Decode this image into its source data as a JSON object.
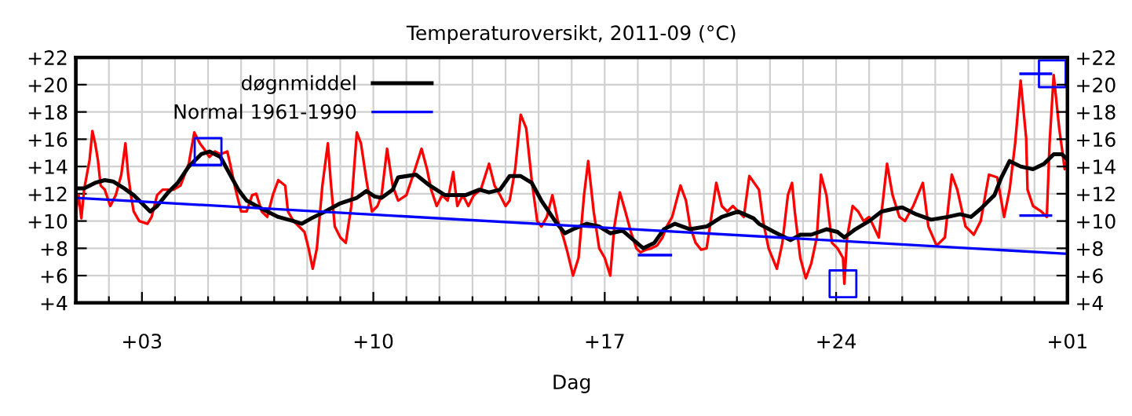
{
  "chart_data": {
    "type": "line",
    "title": "Temperaturoversikt, 2011-09 (°C)",
    "xlabel": "Dag",
    "xlim": [
      "2011-09-01",
      "2011-10-01"
    ],
    "ylim": [
      4,
      22
    ],
    "y2lim": [
      4,
      22
    ],
    "xticks": [
      {
        "value": "2011-09-01",
        "label": null
      },
      {
        "value": "2011-09-02",
        "label": null
      },
      {
        "value": "2011-09-03",
        "label": "+03"
      },
      {
        "value": "2011-09-04",
        "label": null
      },
      {
        "value": "2011-09-05",
        "label": null
      },
      {
        "value": "2011-09-06",
        "label": null
      },
      {
        "value": "2011-09-07",
        "label": null
      },
      {
        "value": "2011-09-08",
        "label": null
      },
      {
        "value": "2011-09-09",
        "label": null
      },
      {
        "value": "2011-09-10",
        "label": "+10"
      },
      {
        "value": "2011-09-11",
        "label": null
      },
      {
        "value": "2011-09-12",
        "label": null
      },
      {
        "value": "2011-09-13",
        "label": null
      },
      {
        "value": "2011-09-14",
        "label": null
      },
      {
        "value": "2011-09-15",
        "label": null
      },
      {
        "value": "2011-09-16",
        "label": null
      },
      {
        "value": "2011-09-17",
        "label": "+17"
      },
      {
        "value": "2011-09-18",
        "label": null
      },
      {
        "value": "2011-09-19",
        "label": null
      },
      {
        "value": "2011-09-20",
        "label": null
      },
      {
        "value": "2011-09-21",
        "label": null
      },
      {
        "value": "2011-09-22",
        "label": null
      },
      {
        "value": "2011-09-23",
        "label": null
      },
      {
        "value": "2011-09-24",
        "label": "+24"
      },
      {
        "value": "2011-09-25",
        "label": null
      },
      {
        "value": "2011-09-26",
        "label": null
      },
      {
        "value": "2011-09-27",
        "label": null
      },
      {
        "value": "2011-09-28",
        "label": null
      },
      {
        "value": "2011-09-29",
        "label": null
      },
      {
        "value": "2011-09-30",
        "label": null
      },
      {
        "value": "2011-10-01",
        "label": "+01"
      }
    ],
    "yticks": [
      {
        "value": 4,
        "label": "+4"
      },
      {
        "value": 6,
        "label": "+6"
      },
      {
        "value": 8,
        "label": "+8"
      },
      {
        "value": 10,
        "label": "+10"
      },
      {
        "value": 12,
        "label": "+12"
      },
      {
        "value": 14,
        "label": "+14"
      },
      {
        "value": 16,
        "label": "+16"
      },
      {
        "value": 18,
        "label": "+18"
      },
      {
        "value": 20,
        "label": "+20"
      },
      {
        "value": 22,
        "label": "+22"
      }
    ],
    "y2ticks": [
      {
        "value": 4,
        "label": "+4"
      },
      {
        "value": 6,
        "label": "+6"
      },
      {
        "value": 8,
        "label": "+8"
      },
      {
        "value": 10,
        "label": "+10"
      },
      {
        "value": 12,
        "label": "+12"
      },
      {
        "value": 14,
        "label": "+14"
      },
      {
        "value": 16,
        "label": "+16"
      },
      {
        "value": 18,
        "label": "+18"
      },
      {
        "value": 20,
        "label": "+20"
      },
      {
        "value": 22,
        "label": "+22"
      }
    ],
    "grid": true,
    "legend": "top left",
    "marker": "none",
    "line_style": "solid",
    "series": [
      {
        "color": "#ff0000",
        "x": [
          "2011-09-01T00:00",
          "2011-09-01T02:00",
          "2011-09-01T04:00",
          "2011-09-01T06:00",
          "2011-09-01T10:00",
          "2011-09-01T12:00",
          "2011-09-01T14:00",
          "2011-09-01T16:00",
          "2011-09-01T18:00",
          "2011-09-01T21:00",
          "2011-09-02T01:00",
          "2011-09-02T05:00",
          "2011-09-02T09:00",
          "2011-09-02T12:00",
          "2011-09-02T14:00",
          "2011-09-02T16:00",
          "2011-09-02T18:00",
          "2011-09-02T22:00",
          "2011-09-03T04:00",
          "2011-09-03T07:00",
          "2011-09-03T11:00",
          "2011-09-03T15:00",
          "2011-09-03T23:00",
          "2011-09-04T04:00",
          "2011-09-04T10:00",
          "2011-09-04T14:00",
          "2011-09-04T18:00",
          "2011-09-04T21:00",
          "2011-09-05T01:00",
          "2011-09-05T05:00",
          "2011-09-05T09:00",
          "2011-09-05T14:00",
          "2011-09-05T16:00",
          "2011-09-05T20:00",
          "2011-09-06T00:00",
          "2011-09-06T04:00",
          "2011-09-06T08:00",
          "2011-09-06T11:00",
          "2011-09-06T15:00",
          "2011-09-06T19:00",
          "2011-09-06T23:00",
          "2011-09-07T03:00",
          "2011-09-07T08:00",
          "2011-09-07T10:00",
          "2011-09-07T14:00",
          "2011-09-07T18:00",
          "2011-09-07T22:00",
          "2011-09-08T01:00",
          "2011-09-08T04:00",
          "2011-09-08T07:00",
          "2011-09-08T11:00",
          "2011-09-08T15:00",
          "2011-09-08T17:00",
          "2011-09-08T20:00",
          "2011-09-09T00:00",
          "2011-09-09T04:00",
          "2011-09-09T08:00",
          "2011-09-09T12:00",
          "2011-09-09T15:00",
          "2011-09-09T19:00",
          "2011-09-09T23:00",
          "2011-09-10T03:00",
          "2011-09-10T06:00",
          "2011-09-10T10:00",
          "2011-09-10T14:00",
          "2011-09-10T18:00",
          "2011-09-11T00:00",
          "2011-09-11T05:00",
          "2011-09-11T11:00",
          "2011-09-11T15:00",
          "2011-09-11T18:00",
          "2011-09-11T22:00",
          "2011-09-12T02:00",
          "2011-09-12T06:00",
          "2011-09-12T10:00",
          "2011-09-12T13:00",
          "2011-09-12T17:00",
          "2011-09-12T21:00",
          "2011-09-13T01:00",
          "2011-09-13T06:00",
          "2011-09-13T12:00",
          "2011-09-13T16:00",
          "2011-09-13T20:00",
          "2011-09-14T00:00",
          "2011-09-14T03:00",
          "2011-09-14T07:00",
          "2011-09-14T11:00",
          "2011-09-14T15:00",
          "2011-09-14T19:00",
          "2011-09-14T23:00",
          "2011-09-15T02:00",
          "2011-09-15T06:00",
          "2011-09-15T10:00",
          "2011-09-15T14:00",
          "2011-09-15T18:00",
          "2011-09-15T21:00",
          "2011-09-16T01:00",
          "2011-09-16T05:00",
          "2011-09-16T09:00",
          "2011-09-16T12:00",
          "2011-09-16T16:00",
          "2011-09-16T20:00",
          "2011-09-17T00:00",
          "2011-09-17T04:00",
          "2011-09-17T07:00",
          "2011-09-17T11:00",
          "2011-09-17T15:00",
          "2011-09-17T19:00",
          "2011-09-17T23:00",
          "2011-09-18T02:00",
          "2011-09-18T06:00",
          "2011-09-18T10:00",
          "2011-09-18T14:00",
          "2011-09-18T18:00",
          "2011-09-18T21:00",
          "2011-09-19T01:00",
          "2011-09-19T07:00",
          "2011-09-19T11:00",
          "2011-09-19T14:00",
          "2011-09-19T18:00",
          "2011-09-19T22:00",
          "2011-09-20T02:00",
          "2011-09-20T06:00",
          "2011-09-20T09:00",
          "2011-09-20T13:00",
          "2011-09-20T17:00",
          "2011-09-20T21:00",
          "2011-09-21T01:00",
          "2011-09-21T05:00",
          "2011-09-21T09:00",
          "2011-09-21T16:00",
          "2011-09-21T19:00",
          "2011-09-21T23:00",
          "2011-09-22T05:00",
          "2011-09-22T09:00",
          "2011-09-22T13:00",
          "2011-09-22T16:00",
          "2011-09-22T18:00",
          "2011-09-22T22:00",
          "2011-09-23T02:00",
          "2011-09-23T06:00",
          "2011-09-23T10:00",
          "2011-09-23T13:00",
          "2011-09-23T17:00",
          "2011-09-23T21:00",
          "2011-09-24T01:00",
          "2011-09-24T05:00",
          "2011-09-24T06:00",
          "2011-09-24T08:00",
          "2011-09-24T12:00",
          "2011-09-24T16:00",
          "2011-09-24T20:00",
          "2011-09-25T00:00",
          "2011-09-25T07:00",
          "2011-09-25T13:00",
          "2011-09-25T17:00",
          "2011-09-25T22:00",
          "2011-09-26T02:00",
          "2011-09-26T08:00",
          "2011-09-26T15:00",
          "2011-09-26T19:00",
          "2011-09-27T01:00",
          "2011-09-27T07:00",
          "2011-09-27T12:00",
          "2011-09-27T16:00",
          "2011-09-27T22:00",
          "2011-09-28T04:00",
          "2011-09-28T09:00",
          "2011-09-28T15:00",
          "2011-09-28T21:00",
          "2011-09-29T02:00",
          "2011-09-29T06:00",
          "2011-09-29T10:00",
          "2011-09-29T14:00",
          "2011-09-29T18:00",
          "2011-09-29T19:00",
          "2011-09-29T23:00",
          "2011-09-30T05:00",
          "2011-09-30T09:00",
          "2011-09-30T11:00",
          "2011-09-30T14:00",
          "2011-09-30T18:00",
          "2011-09-30T22:00",
          "2011-10-01T00:00"
        ],
        "values": [
          10.7,
          11.9,
          10.2,
          12.3,
          14.5,
          16.6,
          15.7,
          14.5,
          12.6,
          12.3,
          11.1,
          11.9,
          13.4,
          15.7,
          13.4,
          11.9,
          10.7,
          10.0,
          9.8,
          10.3,
          11.9,
          12.3,
          12.3,
          12.6,
          14.2,
          16.5,
          15.7,
          15.3,
          14.7,
          15.1,
          14.9,
          15.1,
          14.2,
          12.3,
          10.7,
          10.7,
          11.9,
          12.0,
          10.7,
          10.3,
          11.9,
          13.0,
          12.6,
          10.7,
          10.0,
          9.6,
          9.2,
          8.0,
          6.5,
          8.0,
          12.6,
          15.7,
          13.0,
          9.6,
          8.8,
          8.4,
          11.1,
          16.5,
          15.7,
          13.0,
          10.7,
          11.1,
          11.9,
          15.3,
          12.6,
          11.5,
          11.9,
          13.4,
          15.3,
          13.8,
          12.3,
          11.1,
          11.9,
          11.5,
          13.6,
          11.1,
          11.9,
          11.1,
          11.9,
          12.3,
          14.2,
          12.6,
          11.9,
          11.1,
          11.5,
          13.8,
          17.8,
          16.8,
          13.0,
          10.0,
          9.6,
          10.3,
          11.9,
          10.0,
          8.8,
          7.7,
          6.0,
          7.3,
          11.9,
          14.4,
          10.7,
          8.0,
          7.3,
          6.0,
          9.6,
          12.1,
          10.7,
          9.2,
          8.0,
          7.7,
          7.9,
          8.0,
          8.2,
          8.8,
          9.6,
          10.3,
          12.6,
          11.5,
          9.6,
          8.4,
          7.9,
          8.0,
          10.7,
          12.8,
          11.1,
          10.7,
          11.1,
          10.7,
          10.3,
          13.3,
          12.3,
          10.0,
          8.0,
          6.5,
          8.4,
          11.9,
          12.8,
          10.7,
          7.3,
          5.8,
          6.9,
          8.8,
          13.4,
          11.9,
          8.4,
          8.0,
          7.3,
          5.4,
          8.8,
          11.1,
          10.7,
          10.0,
          10.3,
          8.8,
          14.2,
          11.9,
          10.3,
          10.0,
          11.1,
          12.8,
          9.6,
          8.2,
          8.8,
          13.4,
          12.3,
          9.6,
          9.0,
          10.0,
          13.4,
          13.2,
          10.3,
          12.3,
          15.7,
          20.3,
          16.1,
          12.3,
          11.1,
          10.7,
          10.3,
          15.7,
          20.7,
          16.8,
          13.8,
          14.6
        ]
      },
      {
        "name": "døgnmiddel",
        "color": "#000000",
        "x": [
          "2011-09-01T00:00",
          "2011-09-01T06:00",
          "2011-09-01T14:00",
          "2011-09-01T21:00",
          "2011-09-02T03:00",
          "2011-09-02T11:00",
          "2011-09-02T18:00",
          "2011-09-03T00:00",
          "2011-09-03T06:00",
          "2011-09-03T11:00",
          "2011-09-03T19:00",
          "2011-09-04T02:00",
          "2011-09-04T10:00",
          "2011-09-04T19:00",
          "2011-09-05T01:00",
          "2011-09-05T09:00",
          "2011-09-05T16:00",
          "2011-09-05T22:00",
          "2011-09-06T04:00",
          "2011-09-06T15:00",
          "2011-09-07T03:00",
          "2011-09-07T14:00",
          "2011-09-07T20:00",
          "2011-09-08T03:00",
          "2011-09-08T13:00",
          "2011-09-09T00:00",
          "2011-09-09T12:00",
          "2011-09-09T19:00",
          "2011-09-10T01:00",
          "2011-09-10T06:00",
          "2011-09-10T14:00",
          "2011-09-10T18:00",
          "2011-09-11T07:00",
          "2011-09-11T17:00",
          "2011-09-12T04:00",
          "2011-09-12T19:00",
          "2011-09-13T05:00",
          "2011-09-13T12:00",
          "2011-09-13T20:00",
          "2011-09-14T03:00",
          "2011-09-14T11:00",
          "2011-09-14T19:00",
          "2011-09-15T02:00",
          "2011-09-15T12:00",
          "2011-09-15T19:00",
          "2011-09-16T01:00",
          "2011-09-16T11:00",
          "2011-09-16T20:00",
          "2011-09-17T04:00",
          "2011-09-17T13:00",
          "2011-09-17T21:00",
          "2011-09-18T04:00",
          "2011-09-18T12:00",
          "2011-09-18T19:00",
          "2011-09-19T03:00",
          "2011-09-19T14:00",
          "2011-09-20T02:00",
          "2011-09-20T13:00",
          "2011-09-21T01:00",
          "2011-09-21T12:00",
          "2011-09-21T16:00",
          "2011-09-22T03:00",
          "2011-09-22T15:00",
          "2011-09-22T22:00",
          "2011-09-23T06:00",
          "2011-09-23T17:00",
          "2011-09-24T01:00",
          "2011-09-24T06:00",
          "2011-09-24T14:00",
          "2011-09-25T00:00",
          "2011-09-25T09:00",
          "2011-09-25T18:00",
          "2011-09-26T00:00",
          "2011-09-26T10:00",
          "2011-09-26T21:00",
          "2011-09-27T09:00",
          "2011-09-27T18:00",
          "2011-09-28T02:00",
          "2011-09-28T09:00",
          "2011-09-28T19:00",
          "2011-09-29T00:00",
          "2011-09-29T06:00",
          "2011-09-29T14:00",
          "2011-09-29T23:00",
          "2011-09-30T07:00",
          "2011-09-30T14:00",
          "2011-09-30T20:00",
          "2011-10-01T00:00"
        ],
        "values": [
          12.4,
          12.4,
          12.8,
          13.0,
          12.9,
          12.4,
          11.9,
          11.3,
          10.7,
          11.1,
          12.1,
          12.8,
          14.0,
          14.9,
          15.1,
          14.7,
          13.4,
          12.3,
          11.5,
          10.9,
          10.3,
          10.0,
          9.8,
          10.2,
          10.7,
          11.3,
          11.7,
          12.2,
          11.8,
          11.7,
          12.3,
          13.2,
          13.4,
          12.6,
          11.9,
          11.9,
          12.3,
          12.1,
          12.3,
          13.3,
          13.3,
          12.8,
          11.5,
          10.0,
          9.1,
          9.4,
          9.8,
          9.6,
          9.1,
          9.3,
          8.6,
          8.0,
          8.4,
          9.4,
          9.8,
          9.4,
          9.6,
          10.3,
          10.7,
          10.2,
          9.8,
          9.2,
          8.6,
          9.0,
          9.0,
          9.4,
          9.2,
          8.8,
          9.4,
          10.0,
          10.7,
          10.9,
          11.0,
          10.5,
          10.1,
          10.3,
          10.5,
          10.3,
          10.9,
          11.9,
          13.2,
          14.4,
          14.0,
          13.8,
          14.2,
          14.9,
          14.9,
          14.5
        ]
      },
      {
        "name": "Normal 1961-1990",
        "color": "#0000ff",
        "x": [
          "2011-09-01T00:00",
          "2011-10-01T00:00"
        ],
        "values": [
          11.7,
          7.6
        ]
      },
      {
        "type": "scatter",
        "marker": "square",
        "color": "#0000ff",
        "x": [
          "2011-09-05T00:00",
          "2011-09-24T05:00",
          "2011-09-30T13:00"
        ],
        "values": [
          15.1,
          5.4,
          20.8
        ]
      },
      {
        "color": "#0000ff",
        "x": [
          "2011-09-04T13:00",
          "2011-09-05T09:00"
        ],
        "values": [
          14.1,
          14.1
        ]
      },
      {
        "color": "#0000ff",
        "x": [
          "2011-09-18T01:00",
          "2011-09-19T00:00"
        ],
        "values": [
          7.5,
          7.5
        ]
      },
      {
        "color": "#0000ff",
        "x": [
          "2011-09-29T14:00",
          "2011-09-30T12:00"
        ],
        "values": [
          20.8,
          20.8
        ]
      },
      {
        "color": "#0000ff",
        "x": [
          "2011-09-29T14:00",
          "2011-09-30T12:00"
        ],
        "values": [
          10.4,
          10.4
        ]
      }
    ]
  }
}
